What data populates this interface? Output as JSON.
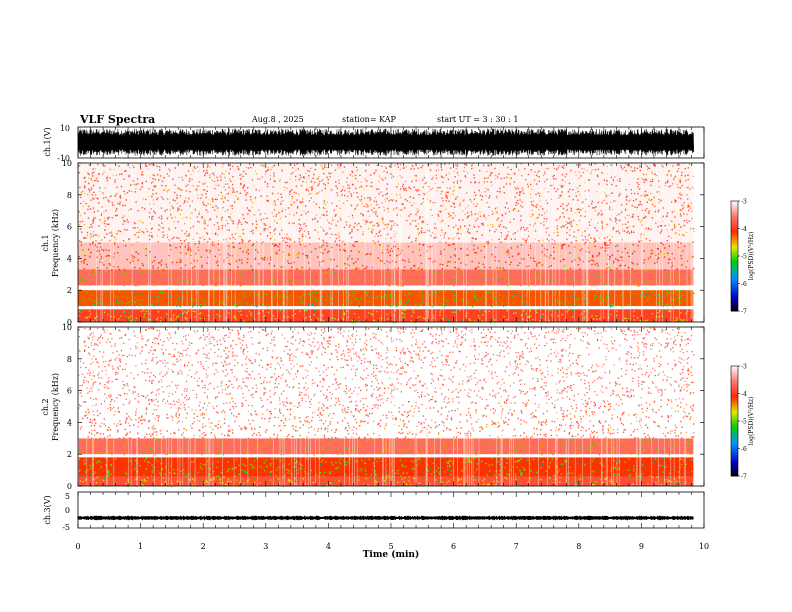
{
  "header": {
    "title": "VLF Spectra",
    "date": "Aug.8 , 2025",
    "station": "station= KAP",
    "start": "start UT = 3 : 30 : 1"
  },
  "chart_data": [
    {
      "type": "line",
      "panel": "waveform",
      "ylabel": "ch.1(V)",
      "ylim": [
        -10,
        10
      ],
      "yticks": [
        "10",
        "-10"
      ],
      "xlim": [
        0,
        10
      ],
      "series": [
        {
          "name": "ch.1 waveform",
          "x": [
            0,
            9.83
          ],
          "amplitude_range": [
            -9,
            9
          ]
        }
      ]
    },
    {
      "type": "heatmap",
      "panel": "spectrogram",
      "ylabel_top": "ch.1",
      "ylabel": "Frequency (kHz)",
      "ylim": [
        0,
        10
      ],
      "yticks": [
        "0",
        "2",
        "4",
        "6",
        "8",
        "10"
      ],
      "xlim": [
        0,
        10
      ],
      "data_end_min": 9.83,
      "colorbar": {
        "label": "log(PSD)(V²/Hz)",
        "ticks": [
          "-3",
          "-4",
          "-5",
          "-6",
          "-7"
        ],
        "range": [
          -7,
          -3
        ]
      },
      "bands_khz_log_psd": [
        [
          0,
          0.8,
          -4.3
        ],
        [
          1.0,
          2.0,
          -4.6
        ],
        [
          2.3,
          3.3,
          -4.0
        ],
        [
          3.3,
          5.0,
          -3.6
        ],
        [
          5.0,
          10.0,
          -3.4
        ]
      ]
    },
    {
      "type": "heatmap",
      "panel": "spectrogram",
      "ylabel_top": "ch.2",
      "ylabel": "Frequency (kHz)",
      "ylim": [
        0,
        10
      ],
      "yticks": [
        "0",
        "2",
        "4",
        "6",
        "8",
        "10"
      ],
      "xlim": [
        0,
        10
      ],
      "data_end_min": 9.83,
      "colorbar": {
        "label": "log(PSD)(V²/Hz)",
        "ticks": [
          "-3",
          "-4",
          "-5",
          "-6",
          "-7"
        ],
        "range": [
          -7,
          -3
        ]
      },
      "bands_khz_log_psd": [
        [
          0,
          0.6,
          -4.2
        ],
        [
          0.6,
          1.8,
          -4.5
        ],
        [
          2.0,
          3.0,
          -4.0
        ],
        [
          3.0,
          5.0,
          -3.3
        ],
        [
          5.0,
          10.0,
          -3.1
        ]
      ]
    },
    {
      "type": "line",
      "panel": "waveform",
      "ylabel": "ch.3(V)",
      "ylim": [
        -5,
        5
      ],
      "yticks": [
        "5",
        "0",
        "-5"
      ],
      "xlim": [
        0,
        10
      ],
      "xlabel": "Time (min)",
      "xticks": [
        "0",
        "1",
        "2",
        "3",
        "4",
        "5",
        "6",
        "7",
        "8",
        "9",
        "10"
      ],
      "series": [
        {
          "name": "ch.3 waveform",
          "x": [
            0,
            9.83
          ],
          "level": -2.2,
          "amplitude": 0.6
        }
      ]
    }
  ],
  "colors": {
    "axis": "#000000",
    "background": "#ffffff"
  }
}
